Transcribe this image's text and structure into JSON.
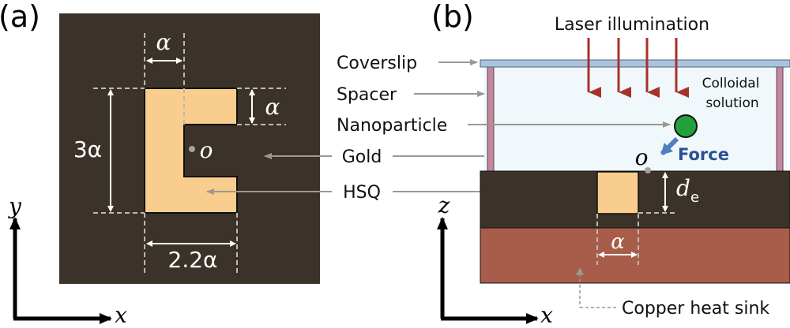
{
  "panel_a": {
    "label": "(a)",
    "dim_top": "α",
    "dim_notch": "α",
    "dim_height": "3α",
    "dim_width": "2.2α",
    "origin": "o",
    "axis_x": "x",
    "axis_y": "y"
  },
  "panel_b": {
    "label": "(b)",
    "laser": "Laser illumination",
    "coverslip": "Coverslip",
    "spacer": "Spacer",
    "nanoparticle": "Nanoparticle",
    "colloidal_1": "Colloidal",
    "colloidal_2": "solution",
    "force": "Force",
    "origin": "o",
    "depth_main": "d",
    "depth_sub": "e",
    "dim_alpha": "α",
    "heat_sink": "Copper heat sink",
    "axis_x": "x",
    "axis_z": "z"
  },
  "shared": {
    "gold": "Gold",
    "hsq": "HSQ"
  },
  "colors": {
    "gold_dark": "#3b3329",
    "hsq": "#f9cd8d",
    "copper": "#a85c4a",
    "solution": "#f0f8fb",
    "coverslip": "#a8c4e0",
    "spacer": "#c4869c",
    "laser_arrow": "#a8322a",
    "particle": "#22a03c",
    "force_arrow": "#4f7fbf",
    "force_text": "#2d4f94",
    "leader": "#9e9790"
  }
}
